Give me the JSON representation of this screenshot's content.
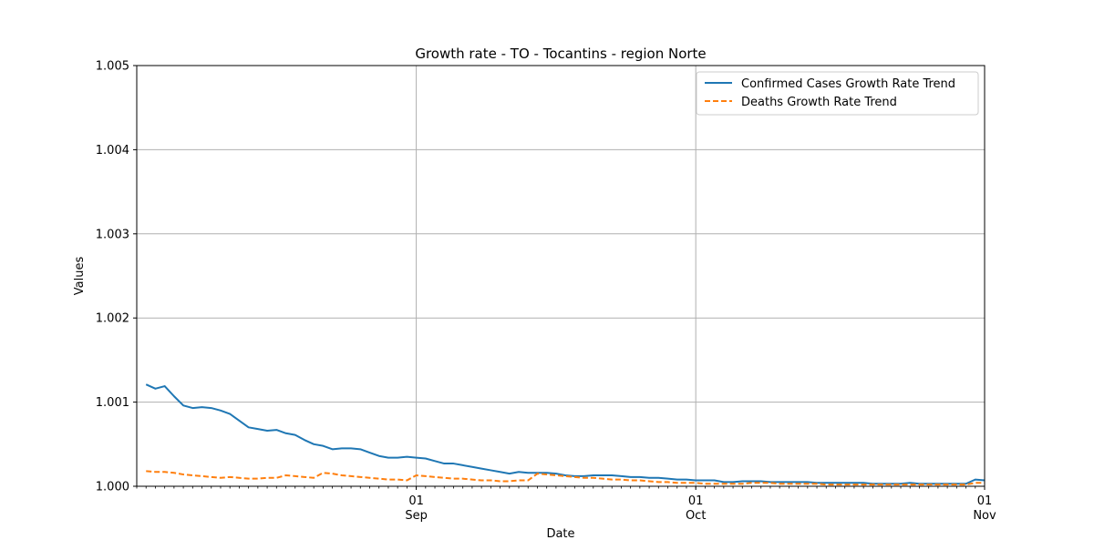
{
  "chart_data": {
    "type": "line",
    "title": "Growth rate - TO - Tocantins - region Norte",
    "xlabel": "Date",
    "ylabel": "Values",
    "x_range": [
      "2020-08-02",
      "2020-11-01"
    ],
    "ylim": [
      1.0,
      1.005
    ],
    "y_ticks": [
      1.0,
      1.001,
      1.002,
      1.003,
      1.004,
      1.005
    ],
    "y_tick_labels": [
      "1.000",
      "1.001",
      "1.002",
      "1.003",
      "1.004",
      "1.005"
    ],
    "x_major_ticks": [
      {
        "date": "2020-09-01",
        "day": "01",
        "month": "Sep"
      },
      {
        "date": "2020-10-01",
        "day": "01",
        "month": "Oct"
      },
      {
        "date": "2020-11-01",
        "day": "01",
        "month": "Nov"
      }
    ],
    "grid": true,
    "legend_position": "top-right",
    "series": [
      {
        "name": "Confirmed Cases Growth Rate Trend",
        "color": "#1f77b4",
        "style": "solid",
        "points": [
          [
            "2020-08-03",
            1.00121
          ],
          [
            "2020-08-04",
            1.00116
          ],
          [
            "2020-08-05",
            1.00119
          ],
          [
            "2020-08-06",
            1.00107
          ],
          [
            "2020-08-07",
            1.00096
          ],
          [
            "2020-08-08",
            1.00093
          ],
          [
            "2020-08-09",
            1.00094
          ],
          [
            "2020-08-10",
            1.00093
          ],
          [
            "2020-08-11",
            1.0009
          ],
          [
            "2020-08-12",
            1.00086
          ],
          [
            "2020-08-13",
            1.00078
          ],
          [
            "2020-08-14",
            1.0007
          ],
          [
            "2020-08-15",
            1.00068
          ],
          [
            "2020-08-16",
            1.00066
          ],
          [
            "2020-08-17",
            1.00067
          ],
          [
            "2020-08-18",
            1.00063
          ],
          [
            "2020-08-19",
            1.00061
          ],
          [
            "2020-08-20",
            1.00055
          ],
          [
            "2020-08-21",
            1.0005
          ],
          [
            "2020-08-22",
            1.00048
          ],
          [
            "2020-08-23",
            1.00044
          ],
          [
            "2020-08-24",
            1.00045
          ],
          [
            "2020-08-25",
            1.00045
          ],
          [
            "2020-08-26",
            1.00044
          ],
          [
            "2020-08-27",
            1.0004
          ],
          [
            "2020-08-28",
            1.00036
          ],
          [
            "2020-08-29",
            1.00034
          ],
          [
            "2020-08-30",
            1.00034
          ],
          [
            "2020-08-31",
            1.00035
          ],
          [
            "2020-09-01",
            1.00034
          ],
          [
            "2020-09-02",
            1.00033
          ],
          [
            "2020-09-03",
            1.0003
          ],
          [
            "2020-09-04",
            1.00027
          ],
          [
            "2020-09-05",
            1.00027
          ],
          [
            "2020-09-06",
            1.00025
          ],
          [
            "2020-09-07",
            1.00023
          ],
          [
            "2020-09-08",
            1.00021
          ],
          [
            "2020-09-09",
            1.00019
          ],
          [
            "2020-09-10",
            1.00017
          ],
          [
            "2020-09-11",
            1.00015
          ],
          [
            "2020-09-12",
            1.00017
          ],
          [
            "2020-09-13",
            1.00016
          ],
          [
            "2020-09-14",
            1.00016
          ],
          [
            "2020-09-15",
            1.00016
          ],
          [
            "2020-09-16",
            1.00015
          ],
          [
            "2020-09-17",
            1.00013
          ],
          [
            "2020-09-18",
            1.00012
          ],
          [
            "2020-09-19",
            1.00012
          ],
          [
            "2020-09-20",
            1.00013
          ],
          [
            "2020-09-21",
            1.00013
          ],
          [
            "2020-09-22",
            1.00013
          ],
          [
            "2020-09-23",
            1.00012
          ],
          [
            "2020-09-24",
            1.00011
          ],
          [
            "2020-09-25",
            1.00011
          ],
          [
            "2020-09-26",
            1.0001
          ],
          [
            "2020-09-27",
            1.0001
          ],
          [
            "2020-09-28",
            1.00009
          ],
          [
            "2020-09-29",
            1.00008
          ],
          [
            "2020-09-30",
            1.00008
          ],
          [
            "2020-10-01",
            1.00007
          ],
          [
            "2020-10-02",
            1.00007
          ],
          [
            "2020-10-03",
            1.00007
          ],
          [
            "2020-10-04",
            1.00005
          ],
          [
            "2020-10-05",
            1.00005
          ],
          [
            "2020-10-06",
            1.00006
          ],
          [
            "2020-10-07",
            1.00006
          ],
          [
            "2020-10-08",
            1.00006
          ],
          [
            "2020-10-09",
            1.00005
          ],
          [
            "2020-10-10",
            1.00005
          ],
          [
            "2020-10-11",
            1.00005
          ],
          [
            "2020-10-12",
            1.00005
          ],
          [
            "2020-10-13",
            1.00005
          ],
          [
            "2020-10-14",
            1.00004
          ],
          [
            "2020-10-15",
            1.00004
          ],
          [
            "2020-10-16",
            1.00004
          ],
          [
            "2020-10-17",
            1.00004
          ],
          [
            "2020-10-18",
            1.00004
          ],
          [
            "2020-10-19",
            1.00004
          ],
          [
            "2020-10-20",
            1.00003
          ],
          [
            "2020-10-21",
            1.00003
          ],
          [
            "2020-10-22",
            1.00003
          ],
          [
            "2020-10-23",
            1.00003
          ],
          [
            "2020-10-24",
            1.00004
          ],
          [
            "2020-10-25",
            1.00003
          ],
          [
            "2020-10-26",
            1.00003
          ],
          [
            "2020-10-27",
            1.00003
          ],
          [
            "2020-10-28",
            1.00003
          ],
          [
            "2020-10-29",
            1.00003
          ],
          [
            "2020-10-30",
            1.00003
          ],
          [
            "2020-10-31",
            1.00008
          ],
          [
            "2020-11-01",
            1.00007
          ]
        ]
      },
      {
        "name": "Deaths Growth Rate Trend",
        "color": "#ff7f0e",
        "style": "dashed",
        "points": [
          [
            "2020-08-03",
            1.00018
          ],
          [
            "2020-08-04",
            1.00017
          ],
          [
            "2020-08-05",
            1.00017
          ],
          [
            "2020-08-06",
            1.00016
          ],
          [
            "2020-08-07",
            1.00014
          ],
          [
            "2020-08-08",
            1.00013
          ],
          [
            "2020-08-09",
            1.00012
          ],
          [
            "2020-08-10",
            1.00011
          ],
          [
            "2020-08-11",
            1.0001
          ],
          [
            "2020-08-12",
            1.00011
          ],
          [
            "2020-08-13",
            1.0001
          ],
          [
            "2020-08-14",
            1.00009
          ],
          [
            "2020-08-15",
            1.00009
          ],
          [
            "2020-08-16",
            1.0001
          ],
          [
            "2020-08-17",
            1.0001
          ],
          [
            "2020-08-18",
            1.00013
          ],
          [
            "2020-08-19",
            1.00012
          ],
          [
            "2020-08-20",
            1.00011
          ],
          [
            "2020-08-21",
            1.0001
          ],
          [
            "2020-08-22",
            1.00016
          ],
          [
            "2020-08-23",
            1.00015
          ],
          [
            "2020-08-24",
            1.00013
          ],
          [
            "2020-08-25",
            1.00012
          ],
          [
            "2020-08-26",
            1.00011
          ],
          [
            "2020-08-27",
            1.0001
          ],
          [
            "2020-08-28",
            1.00009
          ],
          [
            "2020-08-29",
            1.00008
          ],
          [
            "2020-08-30",
            1.00008
          ],
          [
            "2020-08-31",
            1.00007
          ],
          [
            "2020-09-01",
            1.00013
          ],
          [
            "2020-09-02",
            1.00012
          ],
          [
            "2020-09-03",
            1.00011
          ],
          [
            "2020-09-04",
            1.0001
          ],
          [
            "2020-09-05",
            1.00009
          ],
          [
            "2020-09-06",
            1.00009
          ],
          [
            "2020-09-07",
            1.00008
          ],
          [
            "2020-09-08",
            1.00007
          ],
          [
            "2020-09-09",
            1.00007
          ],
          [
            "2020-09-10",
            1.00006
          ],
          [
            "2020-09-11",
            1.00006
          ],
          [
            "2020-09-12",
            1.00007
          ],
          [
            "2020-09-13",
            1.00007
          ],
          [
            "2020-09-14",
            1.00015
          ],
          [
            "2020-09-15",
            1.00014
          ],
          [
            "2020-09-16",
            1.00013
          ],
          [
            "2020-09-17",
            1.00012
          ],
          [
            "2020-09-18",
            1.00011
          ],
          [
            "2020-09-19",
            1.0001
          ],
          [
            "2020-09-20",
            1.0001
          ],
          [
            "2020-09-21",
            1.00009
          ],
          [
            "2020-09-22",
            1.00008
          ],
          [
            "2020-09-23",
            1.00008
          ],
          [
            "2020-09-24",
            1.00007
          ],
          [
            "2020-09-25",
            1.00007
          ],
          [
            "2020-09-26",
            1.00006
          ],
          [
            "2020-09-27",
            1.00005
          ],
          [
            "2020-09-28",
            1.00005
          ],
          [
            "2020-09-29",
            1.00004
          ],
          [
            "2020-09-30",
            1.00004
          ],
          [
            "2020-10-01",
            1.00004
          ],
          [
            "2020-10-02",
            1.00003
          ],
          [
            "2020-10-03",
            1.00003
          ],
          [
            "2020-10-04",
            1.00003
          ],
          [
            "2020-10-05",
            1.00003
          ],
          [
            "2020-10-06",
            1.00003
          ],
          [
            "2020-10-07",
            1.00004
          ],
          [
            "2020-10-08",
            1.00004
          ],
          [
            "2020-10-09",
            1.00004
          ],
          [
            "2020-10-10",
            1.00003
          ],
          [
            "2020-10-11",
            1.00003
          ],
          [
            "2020-10-12",
            1.00003
          ],
          [
            "2020-10-13",
            1.00003
          ],
          [
            "2020-10-14",
            1.00003
          ],
          [
            "2020-10-15",
            1.00002
          ],
          [
            "2020-10-16",
            1.00002
          ],
          [
            "2020-10-17",
            1.00002
          ],
          [
            "2020-10-18",
            1.00002
          ],
          [
            "2020-10-19",
            1.00002
          ],
          [
            "2020-10-20",
            1.00002
          ],
          [
            "2020-10-21",
            1.00002
          ],
          [
            "2020-10-22",
            1.00002
          ],
          [
            "2020-10-23",
            1.00002
          ],
          [
            "2020-10-24",
            1.00002
          ],
          [
            "2020-10-25",
            1.00002
          ],
          [
            "2020-10-26",
            1.00002
          ],
          [
            "2020-10-27",
            1.00002
          ],
          [
            "2020-10-28",
            1.00002
          ],
          [
            "2020-10-29",
            1.00002
          ],
          [
            "2020-10-30",
            1.00002
          ],
          [
            "2020-10-31",
            1.00004
          ],
          [
            "2020-11-01",
            1.00004
          ]
        ]
      }
    ]
  }
}
